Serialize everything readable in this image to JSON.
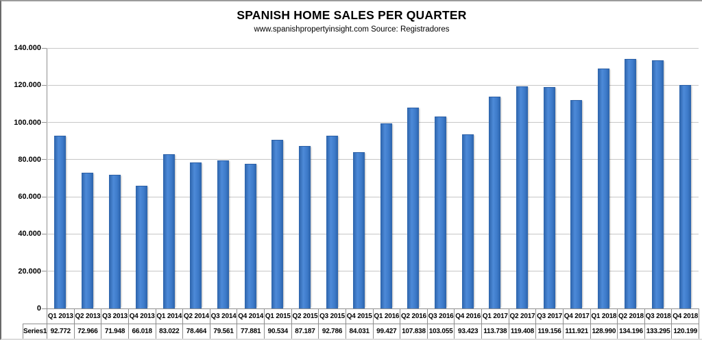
{
  "header": {
    "title": "SPANISH HOME SALES PER QUARTER",
    "subtitle": "www.spanishpropertyinsight.com Source: Registradores"
  },
  "chart_data": {
    "type": "bar",
    "title": "SPANISH HOME SALES PER QUARTER",
    "subtitle": "www.spanishpropertyinsight.com Source: Registradores",
    "series_name": "Series1",
    "categories": [
      "Q1 2013",
      "Q2 2013",
      "Q3 2013",
      "Q4 2013",
      "Q1 2014",
      "Q2 2014",
      "Q3 2014",
      "Q4 2014",
      "Q1 2015",
      "Q2 2015",
      "Q3 2015",
      "Q4 2015",
      "Q1 2016",
      "Q2 2016",
      "Q3 2016",
      "Q4 2016",
      "Q1 2017",
      "Q2 2017",
      "Q3 2017",
      "Q4 2017",
      "Q1 2018",
      "Q2 2018",
      "Q3 2018",
      "Q4 2018"
    ],
    "values": [
      92772,
      72966,
      71948,
      66018,
      83022,
      78464,
      79561,
      77881,
      90534,
      87187,
      92786,
      84031,
      99427,
      107838,
      103055,
      93423,
      113738,
      119408,
      119156,
      111921,
      128990,
      134196,
      133295,
      120199
    ],
    "value_labels": [
      "92.772",
      "72.966",
      "71.948",
      "66.018",
      "83.022",
      "78.464",
      "79.561",
      "77.881",
      "90.534",
      "87.187",
      "92.786",
      "84.031",
      "99.427",
      "107.838",
      "103.055",
      "93.423",
      "113.738",
      "119.408",
      "119.156",
      "111.921",
      "128.990",
      "134.196",
      "133.295",
      "120.199"
    ],
    "y_tick_labels": [
      "140.000",
      "120.000",
      "100.000",
      "80.000",
      "60.000",
      "40.000",
      "20.000",
      "0"
    ],
    "ylim": [
      0,
      140000
    ],
    "xlabel": "",
    "ylabel": "",
    "grid": true,
    "legend_position": "data-table-left",
    "colors": {
      "bar": "#3d7ac9",
      "bar_edge": "#2c63aa",
      "gridline": "#c6c6c6",
      "axis": "#8e8e8e",
      "table_border": "#8e8e8e",
      "text": "#000000",
      "background": "#ffffff"
    }
  }
}
